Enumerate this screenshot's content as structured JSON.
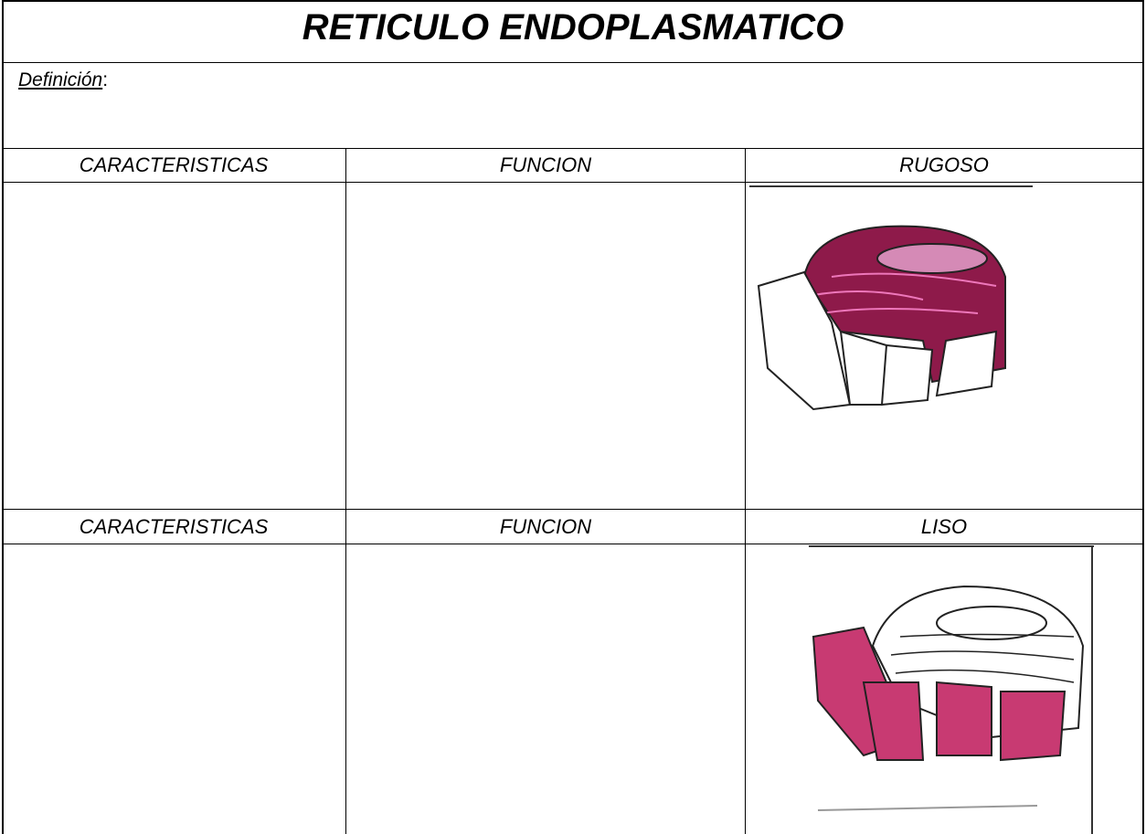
{
  "header": {
    "title": "RETICULO ENDOPLASMATICO"
  },
  "definition": {
    "label": "Definición",
    "separator": ":"
  },
  "sections": [
    {
      "headers": [
        "CARACTERISTICAS",
        "FUNCION",
        "RUGOSO"
      ]
    },
    {
      "headers": [
        "CARACTERISTICAS",
        "FUNCION",
        "LISO"
      ]
    }
  ]
}
